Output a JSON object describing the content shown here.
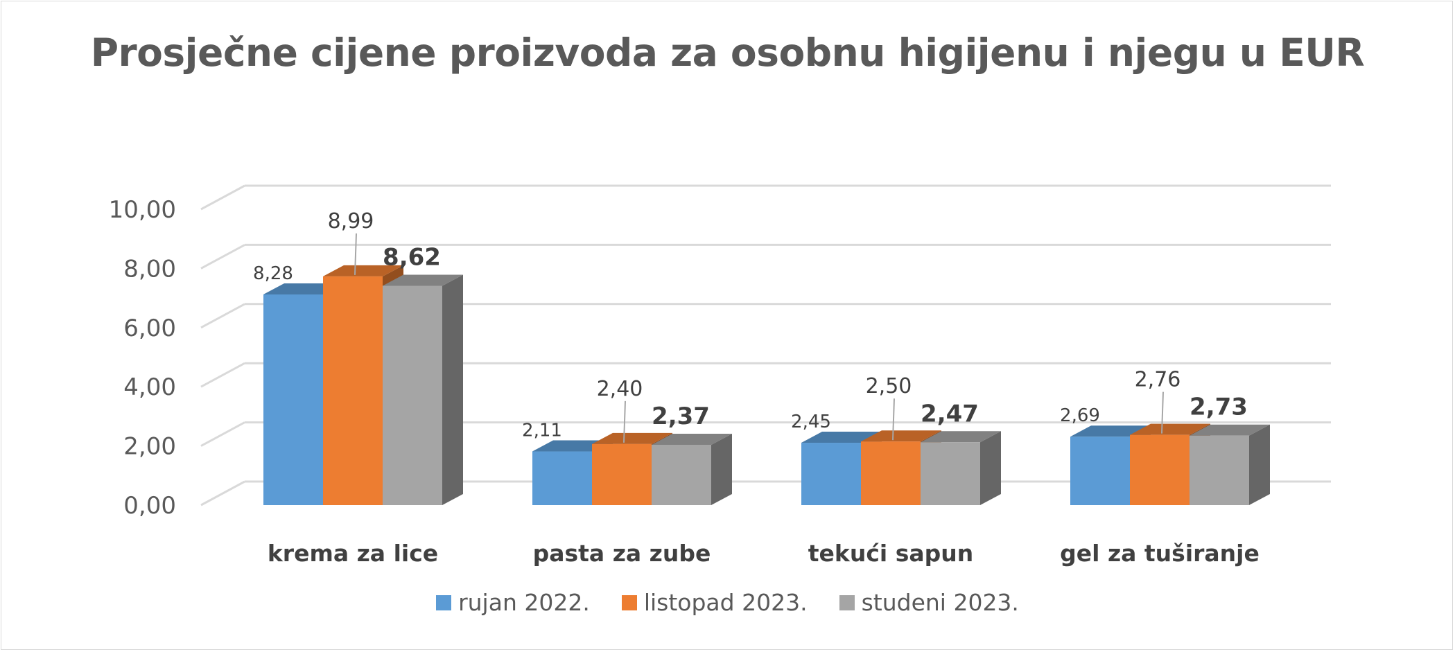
{
  "chart_data": {
    "type": "bar",
    "title": "Prosječne cijene proizvoda za osobnu higijenu i njegu u EUR",
    "categories": [
      "krema za lice",
      "pasta za zube",
      "tekući sapun",
      "gel za tuširanje"
    ],
    "series": [
      {
        "name": "rujan 2022.",
        "color": "#5b9bd5",
        "values": [
          8.28,
          2.11,
          2.45,
          2.69
        ],
        "labels": [
          "8,28",
          "2,11",
          "2,45",
          "2,69"
        ]
      },
      {
        "name": "listopad 2023.",
        "color": "#ed7d31",
        "values": [
          8.99,
          2.4,
          2.5,
          2.76
        ],
        "labels": [
          "8,99",
          "2,40",
          "2,50",
          "2,76"
        ]
      },
      {
        "name": "studeni 2023.",
        "color": "#a5a5a5",
        "values": [
          8.62,
          2.37,
          2.47,
          2.73
        ],
        "labels": [
          "8,62",
          "2,37",
          "2,47",
          "2,73"
        ]
      }
    ],
    "y_ticks": [
      "0,00",
      "2,00",
      "4,00",
      "6,00",
      "8,00",
      "10,00"
    ],
    "ylim": [
      0,
      10
    ],
    "grid": true,
    "style": "3d-clustered-column",
    "legend_position": "bottom"
  }
}
